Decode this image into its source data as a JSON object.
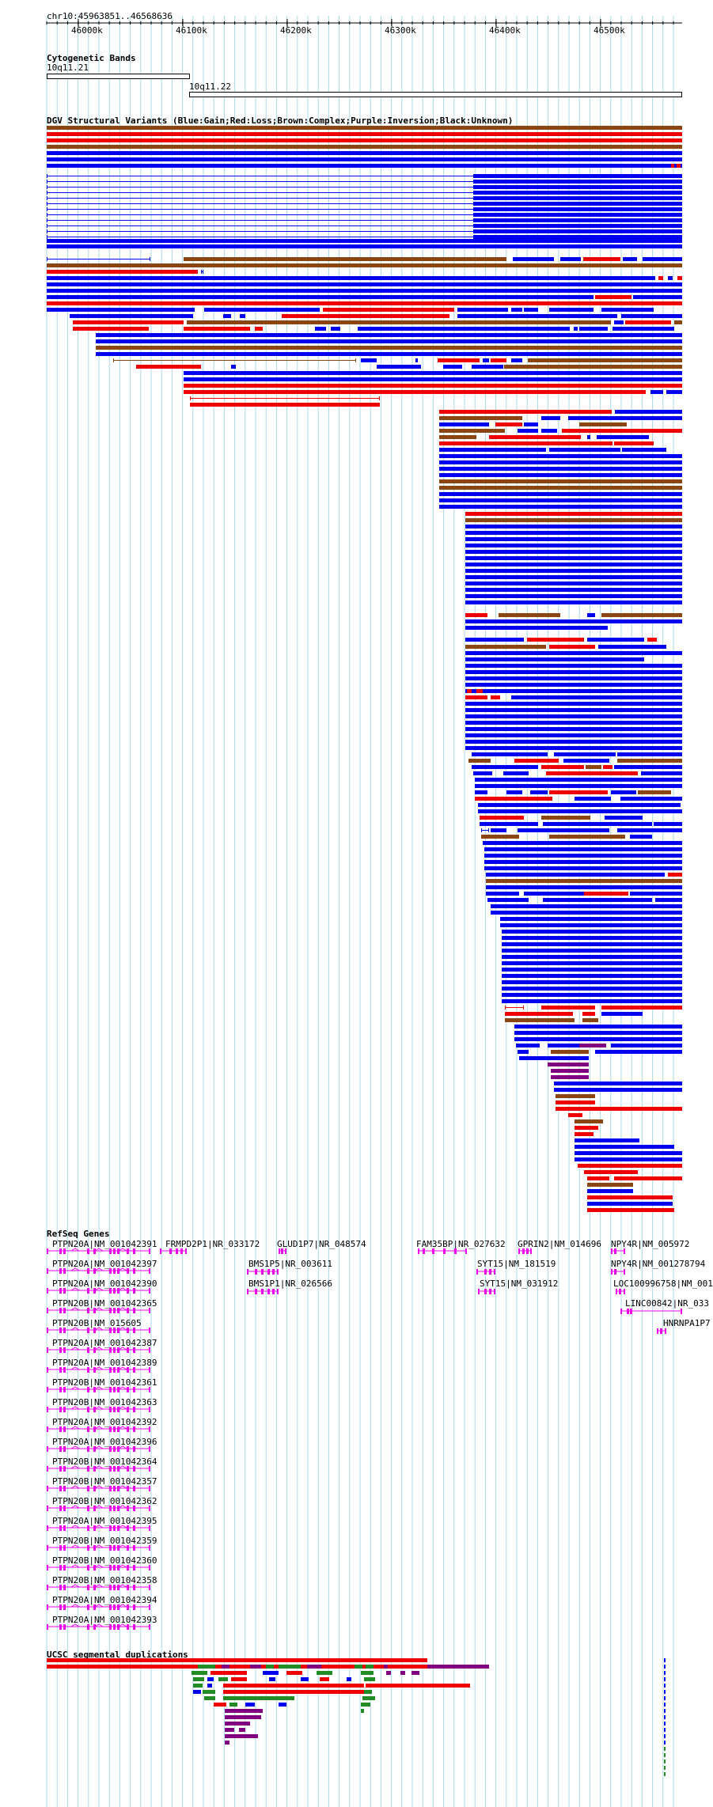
{
  "position_label": "chr10:45963851..46568636",
  "ticks": [
    "46000k",
    "46100k",
    "46200k",
    "46300k",
    "46400k",
    "46500k"
  ],
  "tracks": {
    "cytobands": {
      "title": "Cytogenetic Bands",
      "bands": [
        "10q11.21",
        "10q11.22"
      ]
    },
    "dgv": {
      "title": "DGV Structural Variants (Blue:Gain;Red:Loss;Brown:Complex;Purple:Inversion;Black:Unknown)"
    },
    "refseq": {
      "title": "RefSeq Genes",
      "genes": [
        "PTPN20A|NM_001042391",
        "FRMPD2P1|NR_033172",
        "GLUD1P7|NR_048574",
        "FAM35BP|NR_027632",
        "GPRIN2|NM_014696",
        "NPY4R|NM_005972",
        "PTPN20A|NM_001042397",
        "BMS1P5|NR_003611",
        "SYT15|NM_181519",
        "NPY4R|NM_001278794",
        "PTPN20A|NM_001042390",
        "BMS1P1|NR_026566",
        "SYT15|NM_031912",
        "LOC100996758|NM_001",
        "PTPN20B|NM_001042365",
        "LINC00842|NR_033",
        "HNRNPA1P7",
        "PTPN20B|NM_015605",
        "PTPN20A|NM_001042387",
        "PTPN20A|NM_001042389",
        "PTPN20B|NM_001042361",
        "PTPN20B|NM_001042363",
        "PTPN20A|NM_001042392",
        "PTPN20A|NM_001042396",
        "PTPN20B|NM_001042364",
        "PTPN20B|NM_001042357",
        "PTPN20B|NM_001042362",
        "PTPN20A|NM_001042395",
        "PTPN20B|NM_001042359",
        "PTPN20B|NM_001042360",
        "PTPN20B|NM_001042358",
        "PTPN20A|NM_001042394",
        "PTPN20A|NM_001042393"
      ]
    },
    "segdups": {
      "title": "UCSC segmental duplications"
    }
  },
  "colors": {
    "gain": "#0000ee",
    "loss": "#ee0000",
    "complex": "#8b4513",
    "inversion": "#800080",
    "gene": "#ee00ee",
    "segdup_green": "#228b22",
    "grid": "#add8e6"
  }
}
